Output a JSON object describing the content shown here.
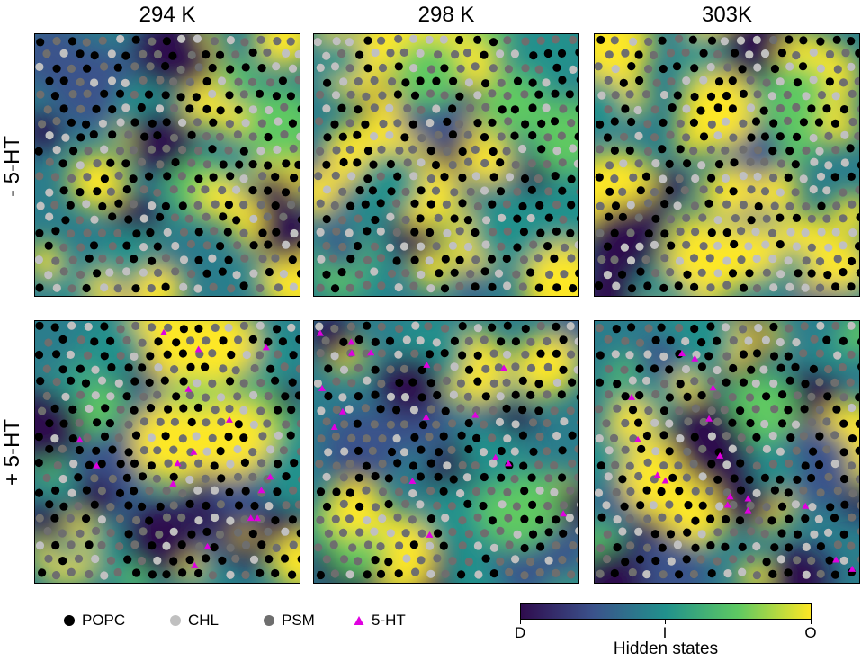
{
  "chart_data": {
    "type": "heatmap",
    "columns": [
      "294 K",
      "298 K",
      "303K"
    ],
    "rows": [
      "- 5-HT",
      "+ 5-HT"
    ],
    "legend": [
      {
        "label": "POPC",
        "color": "#000000",
        "marker": "circle"
      },
      {
        "label": "CHL",
        "color": "#c0c0c0",
        "marker": "circle"
      },
      {
        "label": "PSM",
        "color": "#6e6e6e",
        "marker": "circle"
      },
      {
        "label": "5-HT",
        "color": "#e000e0",
        "marker": "triangle"
      }
    ],
    "colorbar": {
      "title": "Hidden states",
      "ticks": [
        "D",
        "I",
        "O"
      ],
      "colormap": "viridis",
      "colors": [
        "#2f0c4e",
        "#3b528b",
        "#21918c",
        "#5ec962",
        "#fde725"
      ]
    },
    "panels": [
      {
        "row": "- 5-HT",
        "column": "294 K",
        "serotonin_present": false
      },
      {
        "row": "- 5-HT",
        "column": "298 K",
        "serotonin_present": false
      },
      {
        "row": "- 5-HT",
        "column": "303K",
        "serotonin_present": false
      },
      {
        "row": "+ 5-HT",
        "column": "294 K",
        "serotonin_present": true
      },
      {
        "row": "+ 5-HT",
        "column": "298 K",
        "serotonin_present": true
      },
      {
        "row": "+ 5-HT",
        "column": "303K",
        "serotonin_present": true
      }
    ]
  }
}
